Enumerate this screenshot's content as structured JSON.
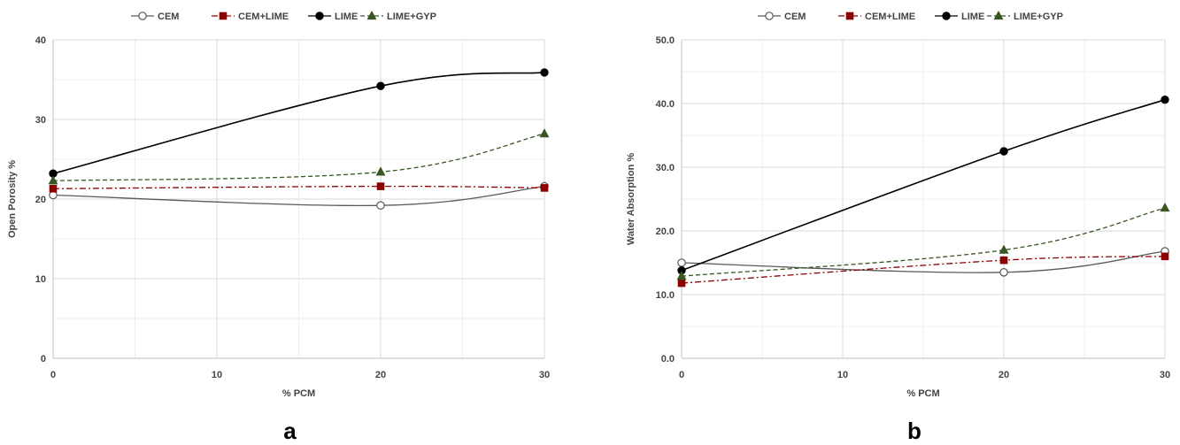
{
  "chart_data": [
    {
      "type": "line",
      "panel_label": "a",
      "xlabel": "% PCM",
      "ylabel": "Open Porosity %",
      "x": [
        0,
        20,
        30
      ],
      "xlim": [
        0,
        30
      ],
      "xticks": [
        0,
        10,
        20,
        30
      ],
      "xtick_labels": [
        "0",
        "10",
        "20",
        "30"
      ],
      "ylim": [
        0,
        40
      ],
      "yticks": [
        0,
        10,
        20,
        30,
        40
      ],
      "ytick_labels": [
        "0",
        "10",
        "20",
        "30",
        "40"
      ],
      "grid": true,
      "legend_position": "top",
      "series": [
        {
          "name": "CEM",
          "values": [
            20.5,
            19.2,
            21.6
          ],
          "color": "#595959",
          "dash": "solid",
          "marker": "circle-open"
        },
        {
          "name": "CEM+LIME",
          "values": [
            21.3,
            21.6,
            21.4
          ],
          "color": "#8b0000",
          "dash": "dashdot",
          "marker": "square"
        },
        {
          "name": "LIME",
          "values": [
            23.2,
            34.2,
            35.9
          ],
          "color": "#000000",
          "dash": "solid",
          "marker": "circle"
        },
        {
          "name": "LIME+GYP",
          "values": [
            22.3,
            23.4,
            28.2
          ],
          "color": "#375623",
          "dash": "dash",
          "marker": "triangle"
        }
      ]
    },
    {
      "type": "line",
      "panel_label": "b",
      "xlabel": "% PCM",
      "ylabel": "Water Absorption %",
      "x": [
        0,
        20,
        30
      ],
      "xlim": [
        0,
        30
      ],
      "xticks": [
        0,
        10,
        20,
        30
      ],
      "xtick_labels": [
        "0",
        "10",
        "20",
        "30"
      ],
      "ylim": [
        0,
        50
      ],
      "yticks": [
        0,
        10,
        20,
        30,
        40,
        50
      ],
      "ytick_labels": [
        "0.0",
        "10.0",
        "20.0",
        "30.0",
        "40.0",
        "50.0"
      ],
      "grid": true,
      "legend_position": "top",
      "series": [
        {
          "name": "CEM",
          "values": [
            15.0,
            13.5,
            16.8
          ],
          "color": "#595959",
          "dash": "solid",
          "marker": "circle-open"
        },
        {
          "name": "CEM+LIME",
          "values": [
            11.8,
            15.4,
            16.0
          ],
          "color": "#8b0000",
          "dash": "dashdot",
          "marker": "square"
        },
        {
          "name": "LIME",
          "values": [
            13.8,
            32.5,
            40.6
          ],
          "color": "#000000",
          "dash": "solid",
          "marker": "circle"
        },
        {
          "name": "LIME+GYP",
          "values": [
            12.9,
            17.0,
            23.6
          ],
          "color": "#375623",
          "dash": "dash",
          "marker": "triangle"
        }
      ]
    }
  ]
}
